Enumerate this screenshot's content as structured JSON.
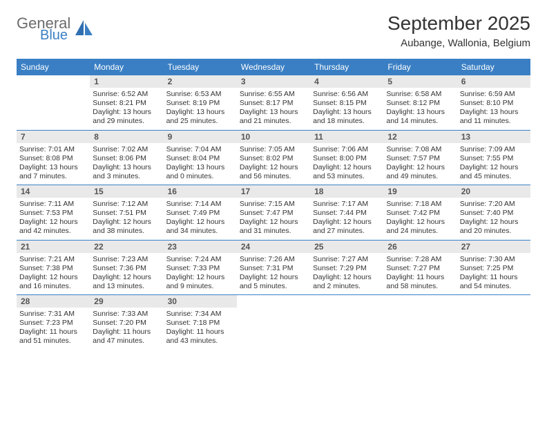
{
  "logo": {
    "top": "General",
    "bottom": "Blue"
  },
  "title": "September 2025",
  "subtitle": "Aubange, Wallonia, Belgium",
  "columns": [
    "Sunday",
    "Monday",
    "Tuesday",
    "Wednesday",
    "Thursday",
    "Friday",
    "Saturday"
  ],
  "colors": {
    "header_bg": "#3a7fc4",
    "daynum_bg": "#e9e9e9",
    "week_border": "#3a7fc4",
    "logo_top": "#6b6b6b",
    "logo_bottom": "#3a7fc4"
  },
  "weeks": [
    [
      {
        "n": "",
        "sr": "",
        "ss": "",
        "d1": "",
        "d2": ""
      },
      {
        "n": "1",
        "sr": "Sunrise: 6:52 AM",
        "ss": "Sunset: 8:21 PM",
        "d1": "Daylight: 13 hours",
        "d2": "and 29 minutes."
      },
      {
        "n": "2",
        "sr": "Sunrise: 6:53 AM",
        "ss": "Sunset: 8:19 PM",
        "d1": "Daylight: 13 hours",
        "d2": "and 25 minutes."
      },
      {
        "n": "3",
        "sr": "Sunrise: 6:55 AM",
        "ss": "Sunset: 8:17 PM",
        "d1": "Daylight: 13 hours",
        "d2": "and 21 minutes."
      },
      {
        "n": "4",
        "sr": "Sunrise: 6:56 AM",
        "ss": "Sunset: 8:15 PM",
        "d1": "Daylight: 13 hours",
        "d2": "and 18 minutes."
      },
      {
        "n": "5",
        "sr": "Sunrise: 6:58 AM",
        "ss": "Sunset: 8:12 PM",
        "d1": "Daylight: 13 hours",
        "d2": "and 14 minutes."
      },
      {
        "n": "6",
        "sr": "Sunrise: 6:59 AM",
        "ss": "Sunset: 8:10 PM",
        "d1": "Daylight: 13 hours",
        "d2": "and 11 minutes."
      }
    ],
    [
      {
        "n": "7",
        "sr": "Sunrise: 7:01 AM",
        "ss": "Sunset: 8:08 PM",
        "d1": "Daylight: 13 hours",
        "d2": "and 7 minutes."
      },
      {
        "n": "8",
        "sr": "Sunrise: 7:02 AM",
        "ss": "Sunset: 8:06 PM",
        "d1": "Daylight: 13 hours",
        "d2": "and 3 minutes."
      },
      {
        "n": "9",
        "sr": "Sunrise: 7:04 AM",
        "ss": "Sunset: 8:04 PM",
        "d1": "Daylight: 13 hours",
        "d2": "and 0 minutes."
      },
      {
        "n": "10",
        "sr": "Sunrise: 7:05 AM",
        "ss": "Sunset: 8:02 PM",
        "d1": "Daylight: 12 hours",
        "d2": "and 56 minutes."
      },
      {
        "n": "11",
        "sr": "Sunrise: 7:06 AM",
        "ss": "Sunset: 8:00 PM",
        "d1": "Daylight: 12 hours",
        "d2": "and 53 minutes."
      },
      {
        "n": "12",
        "sr": "Sunrise: 7:08 AM",
        "ss": "Sunset: 7:57 PM",
        "d1": "Daylight: 12 hours",
        "d2": "and 49 minutes."
      },
      {
        "n": "13",
        "sr": "Sunrise: 7:09 AM",
        "ss": "Sunset: 7:55 PM",
        "d1": "Daylight: 12 hours",
        "d2": "and 45 minutes."
      }
    ],
    [
      {
        "n": "14",
        "sr": "Sunrise: 7:11 AM",
        "ss": "Sunset: 7:53 PM",
        "d1": "Daylight: 12 hours",
        "d2": "and 42 minutes."
      },
      {
        "n": "15",
        "sr": "Sunrise: 7:12 AM",
        "ss": "Sunset: 7:51 PM",
        "d1": "Daylight: 12 hours",
        "d2": "and 38 minutes."
      },
      {
        "n": "16",
        "sr": "Sunrise: 7:14 AM",
        "ss": "Sunset: 7:49 PM",
        "d1": "Daylight: 12 hours",
        "d2": "and 34 minutes."
      },
      {
        "n": "17",
        "sr": "Sunrise: 7:15 AM",
        "ss": "Sunset: 7:47 PM",
        "d1": "Daylight: 12 hours",
        "d2": "and 31 minutes."
      },
      {
        "n": "18",
        "sr": "Sunrise: 7:17 AM",
        "ss": "Sunset: 7:44 PM",
        "d1": "Daylight: 12 hours",
        "d2": "and 27 minutes."
      },
      {
        "n": "19",
        "sr": "Sunrise: 7:18 AM",
        "ss": "Sunset: 7:42 PM",
        "d1": "Daylight: 12 hours",
        "d2": "and 24 minutes."
      },
      {
        "n": "20",
        "sr": "Sunrise: 7:20 AM",
        "ss": "Sunset: 7:40 PM",
        "d1": "Daylight: 12 hours",
        "d2": "and 20 minutes."
      }
    ],
    [
      {
        "n": "21",
        "sr": "Sunrise: 7:21 AM",
        "ss": "Sunset: 7:38 PM",
        "d1": "Daylight: 12 hours",
        "d2": "and 16 minutes."
      },
      {
        "n": "22",
        "sr": "Sunrise: 7:23 AM",
        "ss": "Sunset: 7:36 PM",
        "d1": "Daylight: 12 hours",
        "d2": "and 13 minutes."
      },
      {
        "n": "23",
        "sr": "Sunrise: 7:24 AM",
        "ss": "Sunset: 7:33 PM",
        "d1": "Daylight: 12 hours",
        "d2": "and 9 minutes."
      },
      {
        "n": "24",
        "sr": "Sunrise: 7:26 AM",
        "ss": "Sunset: 7:31 PM",
        "d1": "Daylight: 12 hours",
        "d2": "and 5 minutes."
      },
      {
        "n": "25",
        "sr": "Sunrise: 7:27 AM",
        "ss": "Sunset: 7:29 PM",
        "d1": "Daylight: 12 hours",
        "d2": "and 2 minutes."
      },
      {
        "n": "26",
        "sr": "Sunrise: 7:28 AM",
        "ss": "Sunset: 7:27 PM",
        "d1": "Daylight: 11 hours",
        "d2": "and 58 minutes."
      },
      {
        "n": "27",
        "sr": "Sunrise: 7:30 AM",
        "ss": "Sunset: 7:25 PM",
        "d1": "Daylight: 11 hours",
        "d2": "and 54 minutes."
      }
    ],
    [
      {
        "n": "28",
        "sr": "Sunrise: 7:31 AM",
        "ss": "Sunset: 7:23 PM",
        "d1": "Daylight: 11 hours",
        "d2": "and 51 minutes."
      },
      {
        "n": "29",
        "sr": "Sunrise: 7:33 AM",
        "ss": "Sunset: 7:20 PM",
        "d1": "Daylight: 11 hours",
        "d2": "and 47 minutes."
      },
      {
        "n": "30",
        "sr": "Sunrise: 7:34 AM",
        "ss": "Sunset: 7:18 PM",
        "d1": "Daylight: 11 hours",
        "d2": "and 43 minutes."
      },
      {
        "n": "",
        "sr": "",
        "ss": "",
        "d1": "",
        "d2": ""
      },
      {
        "n": "",
        "sr": "",
        "ss": "",
        "d1": "",
        "d2": ""
      },
      {
        "n": "",
        "sr": "",
        "ss": "",
        "d1": "",
        "d2": ""
      },
      {
        "n": "",
        "sr": "",
        "ss": "",
        "d1": "",
        "d2": ""
      }
    ]
  ]
}
